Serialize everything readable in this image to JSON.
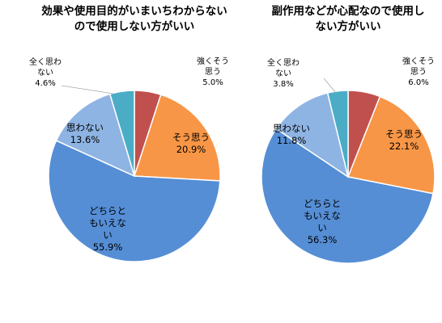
{
  "chart_data": [
    {
      "type": "pie",
      "title_lines": [
        "効果や使用目的がいまいちわからない",
        "ので使用しない方がいい"
      ],
      "slices": [
        {
          "name_lines": [
            "強くそう",
            "思う"
          ],
          "value_label": "5.0%",
          "value": 5.0,
          "color": "#c0504d"
        },
        {
          "name_lines": [
            "そう思う"
          ],
          "value_label": "20.9%",
          "value": 20.9,
          "color": "#f79646"
        },
        {
          "name_lines": [
            "どちらと",
            "もいえな",
            "い"
          ],
          "value_label": "55.9%",
          "value": 55.9,
          "color": "#558ed5"
        },
        {
          "name_lines": [
            "思わない"
          ],
          "value_label": "13.6%",
          "value": 13.6,
          "color": "#8eb4e3"
        },
        {
          "name_lines": [
            "全く思わ",
            "ない"
          ],
          "value_label": "4.6%",
          "value": 4.6,
          "color": "#4bacc6"
        }
      ]
    },
    {
      "type": "pie",
      "title_lines": [
        "副作用などが心配なので使用し",
        "ない方がいい"
      ],
      "slices": [
        {
          "name_lines": [
            "強くそう",
            "思う"
          ],
          "value_label": "6.0%",
          "value": 6.0,
          "color": "#c0504d"
        },
        {
          "name_lines": [
            "そう思う"
          ],
          "value_label": "22.1%",
          "value": 22.1,
          "color": "#f79646"
        },
        {
          "name_lines": [
            "どちらと",
            "もいえな",
            "い"
          ],
          "value_label": "56.3%",
          "value": 56.3,
          "color": "#558ed5"
        },
        {
          "name_lines": [
            "思わない"
          ],
          "value_label": "11.8%",
          "value": 11.8,
          "color": "#8eb4e3"
        },
        {
          "name_lines": [
            "全く思わ",
            "ない"
          ],
          "value_label": "3.8%",
          "value": 3.8,
          "color": "#4bacc6"
        }
      ]
    }
  ]
}
